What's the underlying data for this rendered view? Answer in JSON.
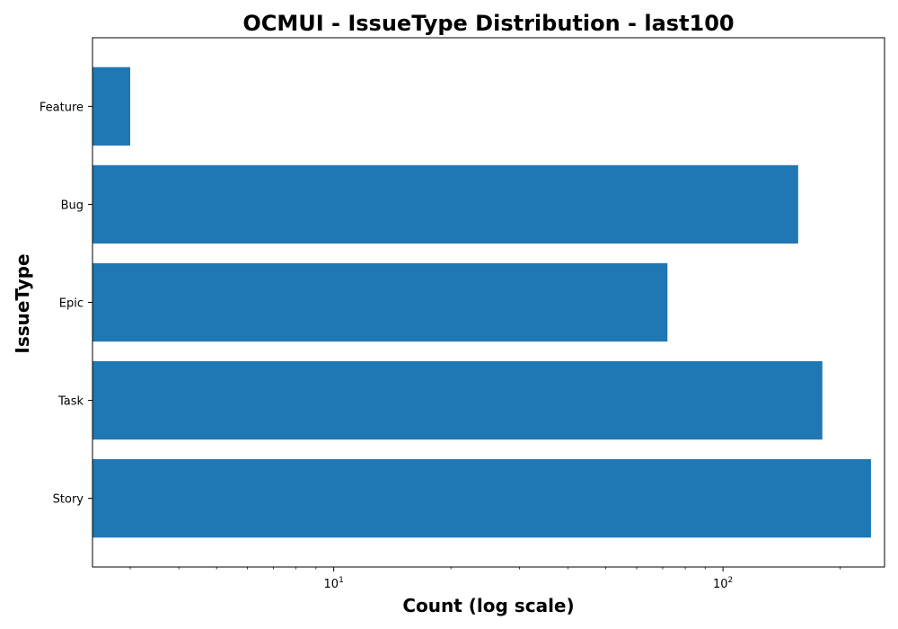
{
  "chart_data": {
    "type": "bar",
    "orientation": "horizontal",
    "title": "OCMUI - IssueType Distribution - last100",
    "xlabel": "Count (log scale)",
    "ylabel": "IssueType",
    "xscale": "log",
    "xlim": [
      2.4,
      260
    ],
    "categories": [
      "Story",
      "Task",
      "Epic",
      "Bug",
      "Feature"
    ],
    "values": [
      240,
      180,
      72,
      156,
      3
    ],
    "x_tick_labels": [
      {
        "value": 10,
        "base": "10",
        "exp": "1"
      },
      {
        "value": 100,
        "base": "10",
        "exp": "2"
      }
    ],
    "bar_color": "#1f77b4",
    "grid": false,
    "legend": "none"
  }
}
